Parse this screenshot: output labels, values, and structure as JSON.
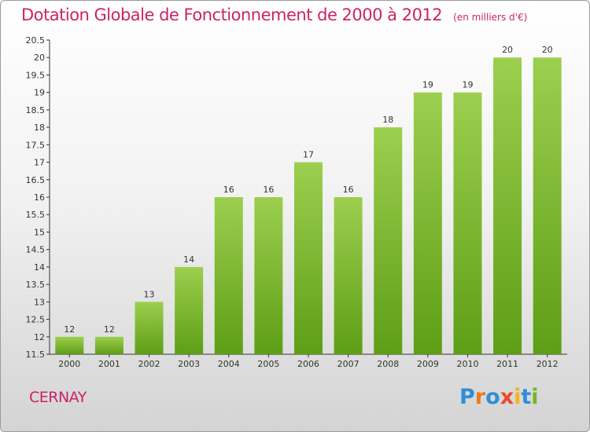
{
  "chart_data": {
    "type": "bar",
    "title": "Dotation Globale de Fonctionnement de 2000 à 2012",
    "subtitle": "(en milliers d'€)",
    "categories": [
      "2000",
      "2001",
      "2002",
      "2003",
      "2004",
      "2005",
      "2006",
      "2007",
      "2008",
      "2009",
      "2010",
      "2011",
      "2012"
    ],
    "values": [
      12,
      12,
      13,
      14,
      16,
      16,
      17,
      16,
      18,
      19,
      19,
      20,
      20
    ],
    "ylim": [
      11.5,
      20.5
    ],
    "yticks": [
      "11.5",
      "12",
      "12.5",
      "13",
      "13.5",
      "14",
      "14.5",
      "15",
      "15.5",
      "16",
      "16.5",
      "17",
      "17.5",
      "18",
      "18.5",
      "19",
      "19.5",
      "20",
      "20.5"
    ],
    "grid": false,
    "bar_color_top": "#9ccf4f",
    "bar_color_bottom": "#5e9e16"
  },
  "footer": {
    "commune": "CERNAY",
    "logo": "Proxiti",
    "logo_colors": [
      "#2b8fd6",
      "#e87a1f",
      "#2b8fd6",
      "#e84a2f",
      "#f2b51c",
      "#2b8fd6",
      "#7ab51d"
    ]
  }
}
